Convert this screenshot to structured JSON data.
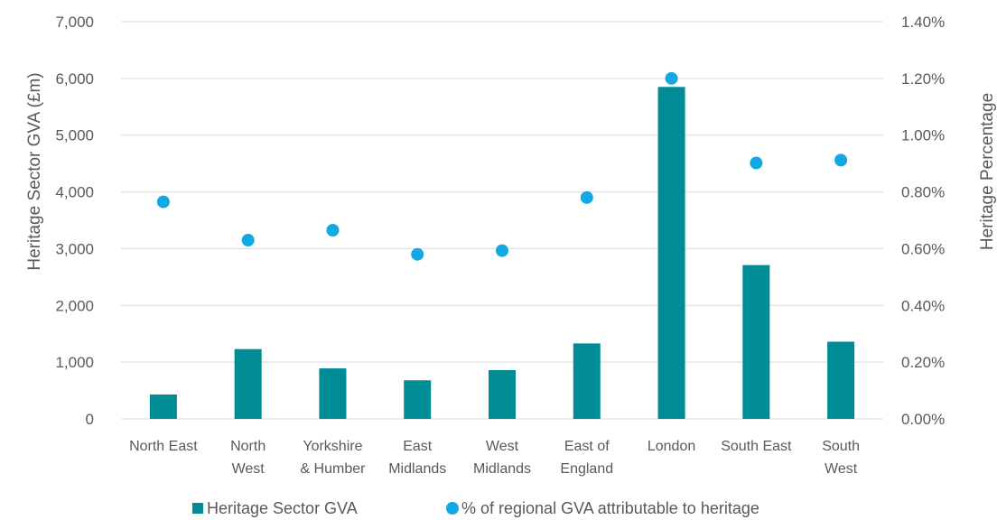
{
  "chart_data": {
    "type": "bar",
    "categories": [
      [
        "North East"
      ],
      [
        "North",
        "West"
      ],
      [
        "Yorkshire",
        "& Humber"
      ],
      [
        "East",
        "Midlands"
      ],
      [
        "West",
        "Midlands"
      ],
      [
        "East of",
        "England"
      ],
      [
        "London"
      ],
      [
        "South East"
      ],
      [
        "South",
        "West"
      ]
    ],
    "series": [
      {
        "name": "Heritage Sector GVA",
        "type": "bar",
        "axis": "left",
        "color": "#008C95",
        "values": [
          430,
          1230,
          890,
          680,
          860,
          1330,
          5850,
          2710,
          1360
        ]
      },
      {
        "name": "% of regional GVA attributable to heritage",
        "type": "scatter",
        "axis": "right",
        "color": "#12A9E3",
        "values": [
          0.765,
          0.63,
          0.665,
          0.58,
          0.593,
          0.78,
          1.2,
          0.902,
          0.912
        ]
      }
    ],
    "y_left": {
      "label": "Heritage Sector GVA (£m)",
      "ylim": [
        0,
        7000
      ],
      "ticks": [
        0,
        1000,
        2000,
        3000,
        4000,
        5000,
        6000,
        7000
      ],
      "tick_labels": [
        "0",
        "1,000",
        "2,000",
        "3,000",
        "4,000",
        "5,000",
        "6,000",
        "7,000"
      ]
    },
    "y_right": {
      "label": "Heritage Percentage",
      "ylim": [
        0,
        1.4
      ],
      "tick_labels": [
        "0.00%",
        "0.20%",
        "0.40%",
        "0.60%",
        "0.80%",
        "1.00%",
        "1.20%",
        "1.40%"
      ]
    },
    "grid": true,
    "legend_position": "bottom"
  }
}
